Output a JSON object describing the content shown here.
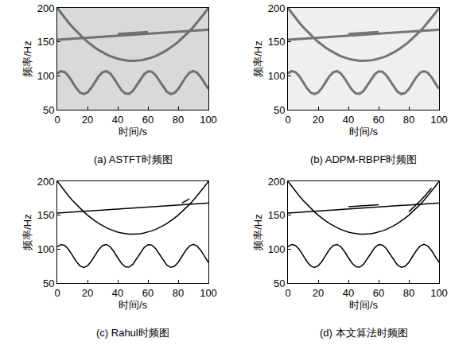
{
  "chart_data": [
    {
      "type": "line",
      "title": "(a) ASTFT时频图",
      "x_label": "时间/s",
      "y_label": "频率/Hz",
      "grid": false,
      "xlim": [
        0,
        100
      ],
      "ylim": [
        50,
        200
      ],
      "xticks": [
        0,
        20,
        40,
        60,
        80,
        100
      ],
      "yticks": [
        50,
        100,
        150,
        200
      ],
      "x": [
        0,
        2.5,
        5,
        7.5,
        10,
        12.5,
        15,
        17.5,
        20,
        22.5,
        25,
        27.5,
        30,
        32.5,
        35,
        37.5,
        40,
        42.5,
        45,
        47.5,
        50,
        52.5,
        55,
        57.5,
        60,
        62.5,
        65,
        67.5,
        70,
        72.5,
        75,
        77.5,
        80,
        82.5,
        85,
        87.5,
        90,
        92.5,
        95,
        97.5,
        100
      ],
      "series": [
        {
          "color": "#707070",
          "values": [
            200,
            192.4,
            185.2,
            178.4,
            171.9,
            165.9,
            160.2,
            155,
            150.1,
            145.6,
            141.5,
            137.8,
            134.5,
            131.6,
            129,
            126.9,
            125.1,
            123.8,
            122.8,
            122.2,
            122,
            122.2,
            122.8,
            123.8,
            125.1,
            126.9,
            129,
            131.6,
            134.5,
            137.8,
            141.5,
            145.6,
            150.1,
            155,
            160.2,
            165.9,
            171.9,
            178.4,
            185.2,
            192.4,
            200
          ]
        },
        {
          "color": "#707070",
          "values": [
            153,
            153.4,
            153.8,
            154.1,
            154.5,
            154.9,
            155.3,
            155.6,
            156,
            156.4,
            156.8,
            157.1,
            157.5,
            157.9,
            158.3,
            158.6,
            159,
            159.4,
            159.8,
            160.1,
            160.5,
            160.9,
            161.3,
            161.6,
            162,
            162.4,
            162.8,
            163.1,
            163.5,
            163.9,
            164.3,
            164.6,
            165,
            165.4,
            165.8,
            166.1,
            166.5,
            166.9,
            167.3,
            167.6,
            168
          ]
        },
        {
          "color": "#707070",
          "values": [
            103.5,
            106.9,
            105.4,
            99.5,
            90.9,
            82,
            75.4,
            73,
            75.4,
            82,
            90.9,
            99.5,
            105.4,
            106.9,
            103.5,
            96.3,
            87.2,
            79,
            73.9,
            73.4,
            77.6,
            85.5,
            94.5,
            102.4,
            106.6,
            106.1,
            101,
            92.8,
            83.7,
            76.5,
            73.1,
            74.6,
            80.5,
            89.1,
            98,
            104.6,
            107,
            104.6,
            98,
            89.1,
            80.5
          ]
        },
        {
          "color": "#707070",
          "values": [
            null,
            null,
            null,
            null,
            null,
            null,
            null,
            null,
            null,
            null,
            null,
            null,
            null,
            null,
            null,
            null,
            161.5,
            161.9,
            162.3,
            162.6,
            163,
            163.4,
            163.8,
            164.1,
            164.5,
            null,
            null,
            null,
            null,
            null,
            null,
            null,
            null,
            null,
            null,
            null,
            null,
            null,
            null,
            null,
            null
          ]
        }
      ]
    },
    {
      "type": "line",
      "title": "(b) ADPM-RBPF时频图",
      "x_label": "时间/s",
      "y_label": "频率/Hz",
      "grid": false,
      "xlim": [
        0,
        100
      ],
      "ylim": [
        50,
        200
      ],
      "xticks": [
        0,
        20,
        40,
        60,
        80,
        100
      ],
      "yticks": [
        50,
        100,
        150,
        200
      ],
      "x": [
        0,
        2.5,
        5,
        7.5,
        10,
        12.5,
        15,
        17.5,
        20,
        22.5,
        25,
        27.5,
        30,
        32.5,
        35,
        37.5,
        40,
        42.5,
        45,
        47.5,
        50,
        52.5,
        55,
        57.5,
        60,
        62.5,
        65,
        67.5,
        70,
        72.5,
        75,
        77.5,
        80,
        82.5,
        85,
        87.5,
        90,
        92.5,
        95,
        97.5,
        100
      ],
      "series": [
        {
          "color": "#757575",
          "values": [
            200,
            192.4,
            185.2,
            178.4,
            171.9,
            165.9,
            160.2,
            155,
            150.1,
            145.6,
            141.5,
            137.8,
            134.5,
            131.6,
            129,
            126.9,
            125.1,
            123.8,
            122.8,
            122.2,
            122,
            122.2,
            122.8,
            123.8,
            125.1,
            126.9,
            129,
            131.6,
            134.5,
            137.8,
            141.5,
            145.6,
            150.1,
            155,
            160.2,
            165.9,
            171.9,
            178.4,
            185.2,
            192.4,
            200
          ]
        },
        {
          "color": "#757575",
          "values": [
            153,
            153.4,
            153.8,
            154.1,
            154.5,
            154.9,
            155.3,
            155.6,
            156,
            156.4,
            156.8,
            157.1,
            157.5,
            157.9,
            158.3,
            158.6,
            159,
            159.4,
            159.8,
            160.1,
            160.5,
            160.9,
            161.3,
            161.6,
            162,
            162.4,
            162.8,
            163.1,
            163.5,
            163.9,
            164.3,
            164.6,
            165,
            165.4,
            165.8,
            166.1,
            166.5,
            166.9,
            167.3,
            167.6,
            168
          ]
        },
        {
          "color": "#757575",
          "values": [
            103.5,
            106.9,
            105.4,
            99.5,
            90.9,
            82,
            75.4,
            73,
            75.4,
            82,
            90.9,
            99.5,
            105.4,
            106.9,
            103.5,
            96.3,
            87.2,
            79,
            73.9,
            73.4,
            77.6,
            85.5,
            94.5,
            102.4,
            106.6,
            106.1,
            101,
            92.8,
            83.7,
            76.5,
            73.1,
            74.6,
            80.5,
            89.1,
            98,
            104.6,
            107,
            104.6,
            98,
            89.1,
            80.5
          ]
        },
        {
          "color": "#757575",
          "values": [
            null,
            null,
            null,
            null,
            null,
            null,
            null,
            null,
            null,
            null,
            null,
            null,
            null,
            null,
            null,
            null,
            161.5,
            161.9,
            162.3,
            162.6,
            163,
            163.4,
            163.8,
            164.1,
            164.5,
            null,
            null,
            null,
            null,
            null,
            null,
            null,
            null,
            null,
            null,
            null,
            null,
            null,
            null,
            null,
            null
          ]
        }
      ]
    },
    {
      "type": "line",
      "title": "(c) Rahul时频图",
      "x_label": "时间/s",
      "y_label": "频率/Hz",
      "grid": false,
      "xlim": [
        0,
        100
      ],
      "ylim": [
        50,
        200
      ],
      "xticks": [
        0,
        20,
        40,
        60,
        80,
        100
      ],
      "yticks": [
        50,
        100,
        150,
        200
      ],
      "x": [
        0,
        2.5,
        5,
        7.5,
        10,
        12.5,
        15,
        17.5,
        20,
        22.5,
        25,
        27.5,
        30,
        32.5,
        35,
        37.5,
        40,
        42.5,
        45,
        47.5,
        50,
        52.5,
        55,
        57.5,
        60,
        62.5,
        65,
        67.5,
        70,
        72.5,
        75,
        77.5,
        80,
        82.5,
        85,
        87.5,
        90,
        92.5,
        95,
        97.5,
        100
      ],
      "series": [
        {
          "color": "#000000",
          "values": [
            200,
            192.4,
            185.2,
            178.4,
            171.9,
            165.9,
            160.2,
            155,
            150.1,
            145.6,
            141.5,
            137.8,
            134.5,
            131.6,
            129,
            126.9,
            125.1,
            123.8,
            122.8,
            122.2,
            122,
            122.2,
            122.8,
            123.8,
            125.1,
            126.9,
            129,
            131.6,
            134.5,
            137.8,
            141.5,
            145.6,
            150.1,
            155,
            160.2,
            165.9,
            171.9,
            178.4,
            185.2,
            192.4,
            200
          ]
        },
        {
          "color": "#000000",
          "values": [
            153,
            153.4,
            153.8,
            154.1,
            154.5,
            154.9,
            155.3,
            155.6,
            156,
            156.4,
            156.8,
            157.1,
            157.5,
            157.9,
            158.3,
            158.6,
            159,
            159.4,
            159.8,
            160.1,
            160.5,
            160.9,
            161.3,
            161.6,
            162,
            162.4,
            162.8,
            163.1,
            163.5,
            163.9,
            164.3,
            164.6,
            165,
            165.4,
            165.8,
            166.1,
            166.5,
            166.9,
            167.3,
            167.6,
            168
          ]
        },
        {
          "color": "#000000",
          "values": [
            103.5,
            106.9,
            105.4,
            99.5,
            90.9,
            82,
            75.4,
            73,
            75.4,
            82,
            90.9,
            99.5,
            105.4,
            106.9,
            103.5,
            96.3,
            87.2,
            79,
            73.9,
            73.4,
            77.6,
            85.5,
            94.5,
            102.4,
            106.6,
            106.1,
            101,
            92.8,
            83.7,
            76.5,
            73.1,
            74.6,
            80.5,
            89.1,
            98,
            104.6,
            107,
            104.6,
            98,
            89.1,
            80.5
          ]
        },
        {
          "color": "#000000",
          "values": [
            null,
            null,
            null,
            null,
            null,
            null,
            null,
            null,
            null,
            null,
            null,
            null,
            null,
            null,
            null,
            null,
            null,
            null,
            null,
            null,
            null,
            null,
            null,
            null,
            null,
            null,
            null,
            null,
            null,
            null,
            null,
            null,
            null,
            168,
            171,
            174,
            null,
            null,
            null,
            null,
            null
          ]
        }
      ]
    },
    {
      "type": "line",
      "title": "(d) 本文算法时频图",
      "x_label": "时间/s",
      "y_label": "频率/Hz",
      "grid": false,
      "xlim": [
        0,
        100
      ],
      "ylim": [
        50,
        200
      ],
      "xticks": [
        0,
        20,
        40,
        60,
        80,
        100
      ],
      "yticks": [
        50,
        100,
        150,
        200
      ],
      "x": [
        0,
        2.5,
        5,
        7.5,
        10,
        12.5,
        15,
        17.5,
        20,
        22.5,
        25,
        27.5,
        30,
        32.5,
        35,
        37.5,
        40,
        42.5,
        45,
        47.5,
        50,
        52.5,
        55,
        57.5,
        60,
        62.5,
        65,
        67.5,
        70,
        72.5,
        75,
        77.5,
        80,
        82.5,
        85,
        87.5,
        90,
        92.5,
        95,
        97.5,
        100
      ],
      "series": [
        {
          "color": "#000000",
          "values": [
            200,
            192.4,
            185.2,
            178.4,
            171.9,
            165.9,
            160.2,
            155,
            150.1,
            145.6,
            141.5,
            137.8,
            134.5,
            131.6,
            129,
            126.9,
            125.1,
            123.8,
            122.8,
            122.2,
            122,
            122.2,
            122.8,
            123.8,
            125.1,
            126.9,
            129,
            131.6,
            134.5,
            137.8,
            141.5,
            145.6,
            150.1,
            155,
            160.2,
            165.9,
            171.9,
            178.4,
            185.2,
            192.4,
            200
          ]
        },
        {
          "color": "#000000",
          "values": [
            153,
            153.4,
            153.8,
            154.1,
            154.5,
            154.9,
            155.3,
            155.6,
            156,
            156.4,
            156.8,
            157.1,
            157.5,
            157.9,
            158.3,
            158.6,
            159,
            159.4,
            159.8,
            160.1,
            160.5,
            160.9,
            161.3,
            161.6,
            162,
            162.4,
            162.8,
            163.1,
            163.5,
            163.9,
            164.3,
            164.6,
            165,
            165.4,
            165.8,
            166.1,
            166.5,
            166.9,
            167.3,
            167.6,
            168
          ]
        },
        {
          "color": "#000000",
          "values": [
            103.5,
            106.9,
            105.4,
            99.5,
            90.9,
            82,
            75.4,
            73,
            75.4,
            82,
            90.9,
            99.5,
            105.4,
            106.9,
            103.5,
            96.3,
            87.2,
            79,
            73.9,
            73.4,
            77.6,
            85.5,
            94.5,
            102.4,
            106.6,
            106.1,
            101,
            92.8,
            83.7,
            76.5,
            73.1,
            74.6,
            80.5,
            89.1,
            98,
            104.6,
            107,
            104.6,
            98,
            89.1,
            80.5
          ]
        },
        {
          "color": "#000000",
          "values": [
            null,
            null,
            null,
            null,
            null,
            null,
            null,
            null,
            null,
            null,
            null,
            null,
            null,
            null,
            null,
            null,
            162.5,
            162.9,
            163.3,
            163.6,
            164,
            164.4,
            164.8,
            165.1,
            165.5,
            null,
            null,
            null,
            null,
            null,
            null,
            null,
            155,
            160,
            165,
            171,
            177,
            183,
            190,
            null,
            null
          ]
        }
      ]
    }
  ]
}
